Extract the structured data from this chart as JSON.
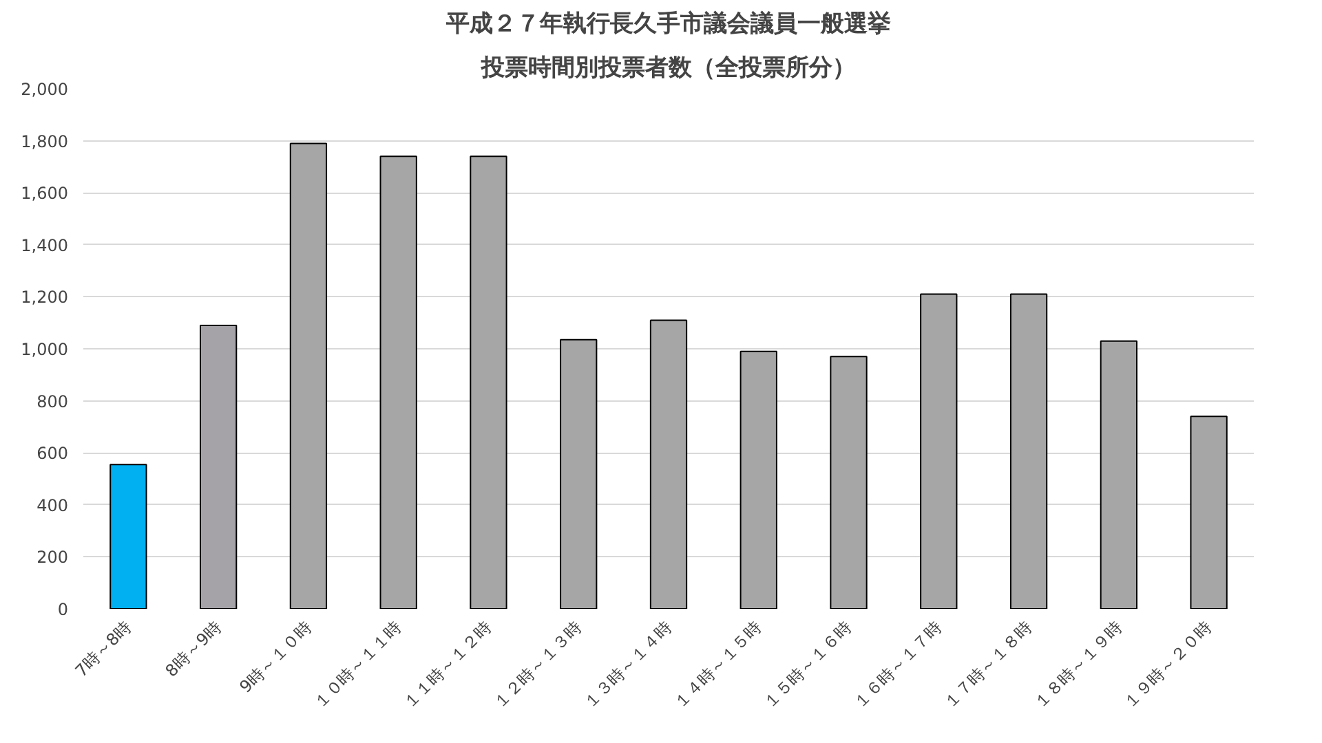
{
  "chart_data": {
    "type": "bar",
    "title": "平成２７年執行長久手市議会議員一般選挙",
    "subtitle": "投票時間別投票者数（全投票所分）",
    "categories": [
      "7時～8時",
      "8時～9時",
      "9時～１０時",
      "１０時～１１時",
      "１１時～１２時",
      "１２時～１３時",
      "１３時～１４時",
      "１４時～１５時",
      "１５時～１６時",
      "１６時～１７時",
      "１７時～１８時",
      "１８時～１９時",
      "１９時～２０時"
    ],
    "values": [
      555,
      1090,
      1790,
      1740,
      1740,
      1035,
      1110,
      990,
      970,
      1210,
      1210,
      1030,
      740
    ],
    "colors": [
      "#00b0f0",
      "#a5a3a8",
      "#a6a6a6",
      "#a6a6a6",
      "#a6a6a6",
      "#a6a6a6",
      "#a6a6a6",
      "#a6a6a6",
      "#a6a6a6",
      "#a6a6a6",
      "#a6a6a6",
      "#a6a6a6",
      "#a6a6a6"
    ],
    "ylim": [
      0,
      2000
    ],
    "yticks": [
      {
        "value": 0,
        "label": "0"
      },
      {
        "value": 200,
        "label": "200"
      },
      {
        "value": 400,
        "label": "400"
      },
      {
        "value": 600,
        "label": "600"
      },
      {
        "value": 800,
        "label": "800"
      },
      {
        "value": 1000,
        "label": "1,000"
      },
      {
        "value": 1200,
        "label": "1,200"
      },
      {
        "value": 1400,
        "label": "1,400"
      },
      {
        "value": 1600,
        "label": "1,600"
      },
      {
        "value": 1800,
        "label": "1,800"
      },
      {
        "value": 2000,
        "label": "2,000"
      }
    ],
    "grid": "y"
  }
}
